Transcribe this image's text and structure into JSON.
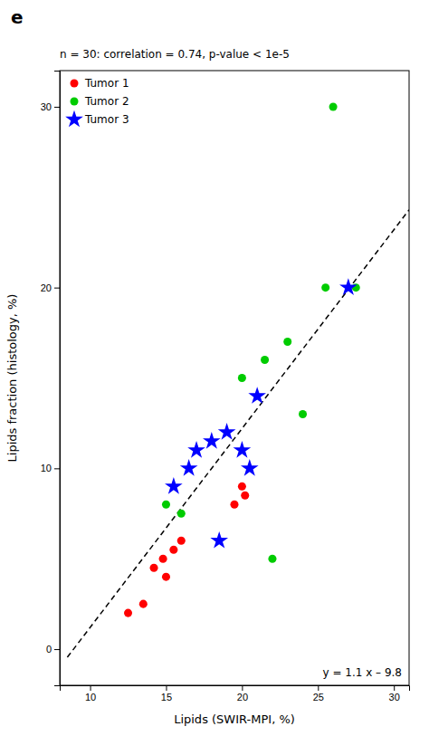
{
  "chart_data": {
    "type": "scatter",
    "title": "e",
    "subtitle": "n = 30: correlation = 0.74, p-value < 1e-5",
    "annotations": [
      "y = 1.1 x – 9.8"
    ],
    "xlabel": "Lipids (SWIR-MPI, %)",
    "ylabel": "Lipids fraction (histology, %)",
    "xlim": [
      8,
      31
    ],
    "ylim": [
      -2,
      32
    ],
    "xticks": [
      10,
      15,
      20,
      25,
      30
    ],
    "yticks": [
      0,
      10,
      20,
      30
    ],
    "grid": false,
    "legend": "upper left",
    "series": [
      {
        "name": "Tumor 1",
        "color": "#ff0000",
        "marker": "circle",
        "x": [
          12.5,
          13.5,
          14.2,
          14.8,
          15.0,
          15.5,
          16.0,
          19.5,
          20.0,
          20.2
        ],
        "values": [
          2.0,
          2.5,
          4.5,
          5.0,
          4.0,
          5.5,
          6.0,
          8.0,
          9.0,
          8.5
        ]
      },
      {
        "name": "Tumor 2",
        "color": "#00cc00",
        "marker": "circle",
        "x": [
          15.0,
          16.0,
          20.0,
          21.5,
          22.0,
          23.0,
          24.0,
          25.5,
          26.0,
          27.5
        ],
        "values": [
          8.0,
          7.5,
          15.0,
          16.0,
          5.0,
          17.0,
          13.0,
          20.0,
          30.0,
          20.0
        ]
      },
      {
        "name": "Tumor 3",
        "color": "#0000ff",
        "marker": "star",
        "x": [
          15.5,
          16.5,
          17.0,
          18.0,
          18.5,
          19.0,
          20.0,
          20.5,
          21.0,
          27.0
        ],
        "values": [
          9.0,
          10.0,
          11.0,
          11.5,
          6.0,
          12.0,
          11.0,
          10.0,
          14.0,
          20.0
        ]
      },
      {
        "type": "line",
        "color": "#000000",
        "line_style": "dashed",
        "x": [
          8.5,
          31.0
        ],
        "values": [
          -0.45,
          24.3
        ]
      }
    ]
  }
}
